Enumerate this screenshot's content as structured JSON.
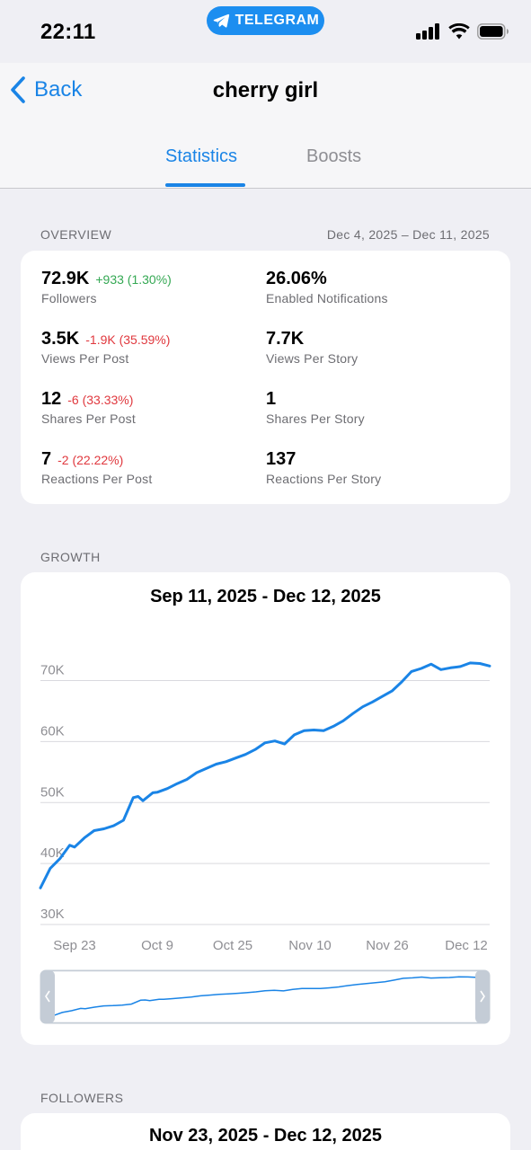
{
  "status_bar": {
    "time": "22:11",
    "app_pill": "TELEGRAM"
  },
  "nav": {
    "back_label": "Back",
    "title": "cherry girl",
    "tabs": [
      {
        "label": "Statistics",
        "active": true
      },
      {
        "label": "Boosts",
        "active": false
      }
    ]
  },
  "overview": {
    "header": "OVERVIEW",
    "range": "Dec 4, 2025 – Dec 11, 2025",
    "stats": [
      {
        "value": "72.9K",
        "change": "+933 (1.30%)",
        "trend": "up",
        "label": "Followers"
      },
      {
        "value": "26.06%",
        "change": "",
        "trend": "",
        "label": "Enabled Notifications"
      },
      {
        "value": "3.5K",
        "change": "-1.9K (35.59%)",
        "trend": "down",
        "label": "Views Per Post"
      },
      {
        "value": "7.7K",
        "change": "",
        "trend": "",
        "label": "Views Per Story"
      },
      {
        "value": "12",
        "change": "-6 (33.33%)",
        "trend": "down",
        "label": "Shares Per Post"
      },
      {
        "value": "1",
        "change": "",
        "trend": "",
        "label": "Shares Per Story"
      },
      {
        "value": "7",
        "change": "-2 (22.22%)",
        "trend": "down",
        "label": "Reactions Per Post"
      },
      {
        "value": "137",
        "change": "",
        "trend": "",
        "label": "Reactions Per Story"
      }
    ]
  },
  "growth": {
    "header": "GROWTH",
    "title": "Sep 11, 2025 - Dec 12, 2025"
  },
  "followers": {
    "header": "FOLLOWERS",
    "title": "Nov 23, 2025 - Dec 12, 2025"
  },
  "colors": {
    "accent": "#1a84e6",
    "line": "#1a84e6",
    "positive": "#34a853",
    "negative": "#e0383e"
  },
  "chart_data": {
    "type": "line",
    "title": "Sep 11, 2025 - Dec 12, 2025",
    "xlabel": "",
    "ylabel": "",
    "x_tick_labels": [
      "Sep 23",
      "Oct 9",
      "Oct 25",
      "Nov 10",
      "Nov 26",
      "Dec 12"
    ],
    "y_tick_labels": [
      "30K",
      "40K",
      "50K",
      "60K",
      "70K"
    ],
    "y_ticks": [
      30000,
      40000,
      50000,
      60000,
      70000
    ],
    "ylim": [
      30000,
      74500
    ],
    "grid": true,
    "legend": "none",
    "series": [
      {
        "x": [
          "2025-09-11",
          "2025-09-13",
          "2025-09-15",
          "2025-09-17",
          "2025-09-18",
          "2025-09-20",
          "2025-09-22",
          "2025-09-24",
          "2025-09-26",
          "2025-09-28",
          "2025-09-30",
          "2025-10-01",
          "2025-10-02",
          "2025-10-04",
          "2025-10-05",
          "2025-10-07",
          "2025-10-09",
          "2025-10-11",
          "2025-10-13",
          "2025-10-15",
          "2025-10-17",
          "2025-10-19",
          "2025-10-21",
          "2025-10-23",
          "2025-10-25",
          "2025-10-27",
          "2025-10-29",
          "2025-10-31",
          "2025-11-02",
          "2025-11-04",
          "2025-11-06",
          "2025-11-08",
          "2025-11-10",
          "2025-11-12",
          "2025-11-14",
          "2025-11-16",
          "2025-11-18",
          "2025-11-20",
          "2025-11-22",
          "2025-11-24",
          "2025-11-26",
          "2025-11-28",
          "2025-11-30",
          "2025-12-02",
          "2025-12-04",
          "2025-12-06",
          "2025-12-08",
          "2025-12-10",
          "2025-12-12"
        ],
        "values": [
          36000,
          39200,
          40800,
          43000,
          42700,
          44200,
          45400,
          45700,
          46200,
          47100,
          50800,
          51000,
          50300,
          51600,
          51700,
          52300,
          53100,
          53800,
          54900,
          55600,
          56300,
          56700,
          57300,
          57900,
          58700,
          59800,
          60100,
          59600,
          61100,
          61800,
          61900,
          61800,
          62500,
          63400,
          64600,
          65700,
          66500,
          67400,
          68300,
          69800,
          71500,
          72000,
          72700,
          71800,
          72100,
          72300,
          72900,
          72800,
          72400
        ]
      }
    ],
    "navigator_range": [
      "2025-09-11",
      "2025-12-12"
    ]
  }
}
